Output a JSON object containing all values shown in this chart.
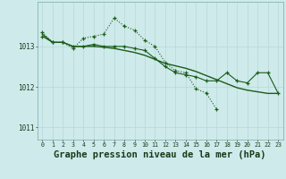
{
  "bg_color": "#ceeaea",
  "grid_color": "#b8d8d8",
  "line_color": "#1a5c1a",
  "title": "Graphe pression niveau de la mer (hPa)",
  "title_fontsize": 7.5,
  "hours": [
    0,
    1,
    2,
    3,
    4,
    5,
    6,
    7,
    8,
    9,
    10,
    11,
    12,
    13,
    14,
    15,
    16,
    17,
    18,
    19,
    20,
    21,
    22,
    23
  ],
  "series1": [
    1013.35,
    1013.1,
    1013.1,
    1012.95,
    1013.2,
    1013.25,
    1013.3,
    1013.7,
    1013.5,
    1013.4,
    1013.15,
    1013.0,
    1012.6,
    1012.4,
    1012.35,
    1011.95,
    1011.85,
    1011.45,
    null,
    null,
    null,
    null,
    null,
    null
  ],
  "series2": [
    1013.3,
    1013.1,
    1013.1,
    1013.0,
    1013.0,
    1013.0,
    1012.98,
    1012.95,
    1012.9,
    1012.85,
    1012.78,
    1012.68,
    1012.58,
    1012.52,
    1012.46,
    1012.38,
    1012.28,
    1012.18,
    1012.08,
    1011.98,
    1011.92,
    1011.88,
    1011.84,
    1011.84
  ],
  "series3": [
    1013.25,
    1013.1,
    1013.1,
    1013.0,
    1013.0,
    1013.05,
    1013.0,
    1013.0,
    1013.0,
    1012.95,
    1012.9,
    1012.7,
    1012.5,
    1012.35,
    1012.3,
    1012.25,
    1012.15,
    1012.15,
    1012.35,
    1012.15,
    1012.1,
    1012.35,
    1012.35,
    1011.85
  ],
  "ylim": [
    1010.7,
    1014.1
  ],
  "yticks": [
    1011,
    1012,
    1013
  ],
  "xlim": [
    -0.5,
    23.5
  ]
}
